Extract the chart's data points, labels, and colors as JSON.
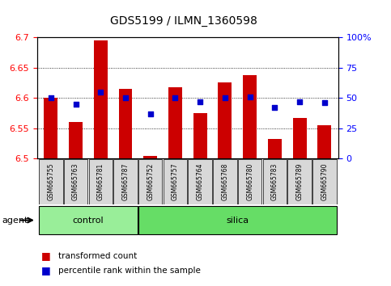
{
  "title": "GDS5199 / ILMN_1360598",
  "samples": [
    "GSM665755",
    "GSM665763",
    "GSM665781",
    "GSM665787",
    "GSM665752",
    "GSM665757",
    "GSM665764",
    "GSM665768",
    "GSM665780",
    "GSM665783",
    "GSM665789",
    "GSM665790"
  ],
  "groups": [
    "control",
    "control",
    "control",
    "control",
    "silica",
    "silica",
    "silica",
    "silica",
    "silica",
    "silica",
    "silica",
    "silica"
  ],
  "red_values": [
    6.6,
    6.56,
    6.695,
    6.615,
    6.505,
    6.617,
    6.575,
    6.625,
    6.638,
    6.532,
    6.567,
    6.555
  ],
  "blue_values": [
    50,
    45,
    55,
    50,
    37,
    50,
    47,
    50,
    51,
    42,
    47,
    46
  ],
  "ylim_left": [
    6.5,
    6.7
  ],
  "ylim_right": [
    0,
    100
  ],
  "yticks_left": [
    6.5,
    6.55,
    6.6,
    6.65,
    6.7
  ],
  "yticks_right": [
    0,
    25,
    50,
    75,
    100
  ],
  "bar_color": "#cc0000",
  "dot_color": "#0000cc",
  "bar_bottom": 6.5,
  "control_color": "#99ee99",
  "silica_color": "#66dd66",
  "legend_red": "transformed count",
  "legend_blue": "percentile rank within the sample",
  "title_fontsize": 10,
  "axis_fontsize": 8,
  "sample_fontsize": 5.5,
  "group_fontsize": 8,
  "legend_fontsize": 7.5
}
